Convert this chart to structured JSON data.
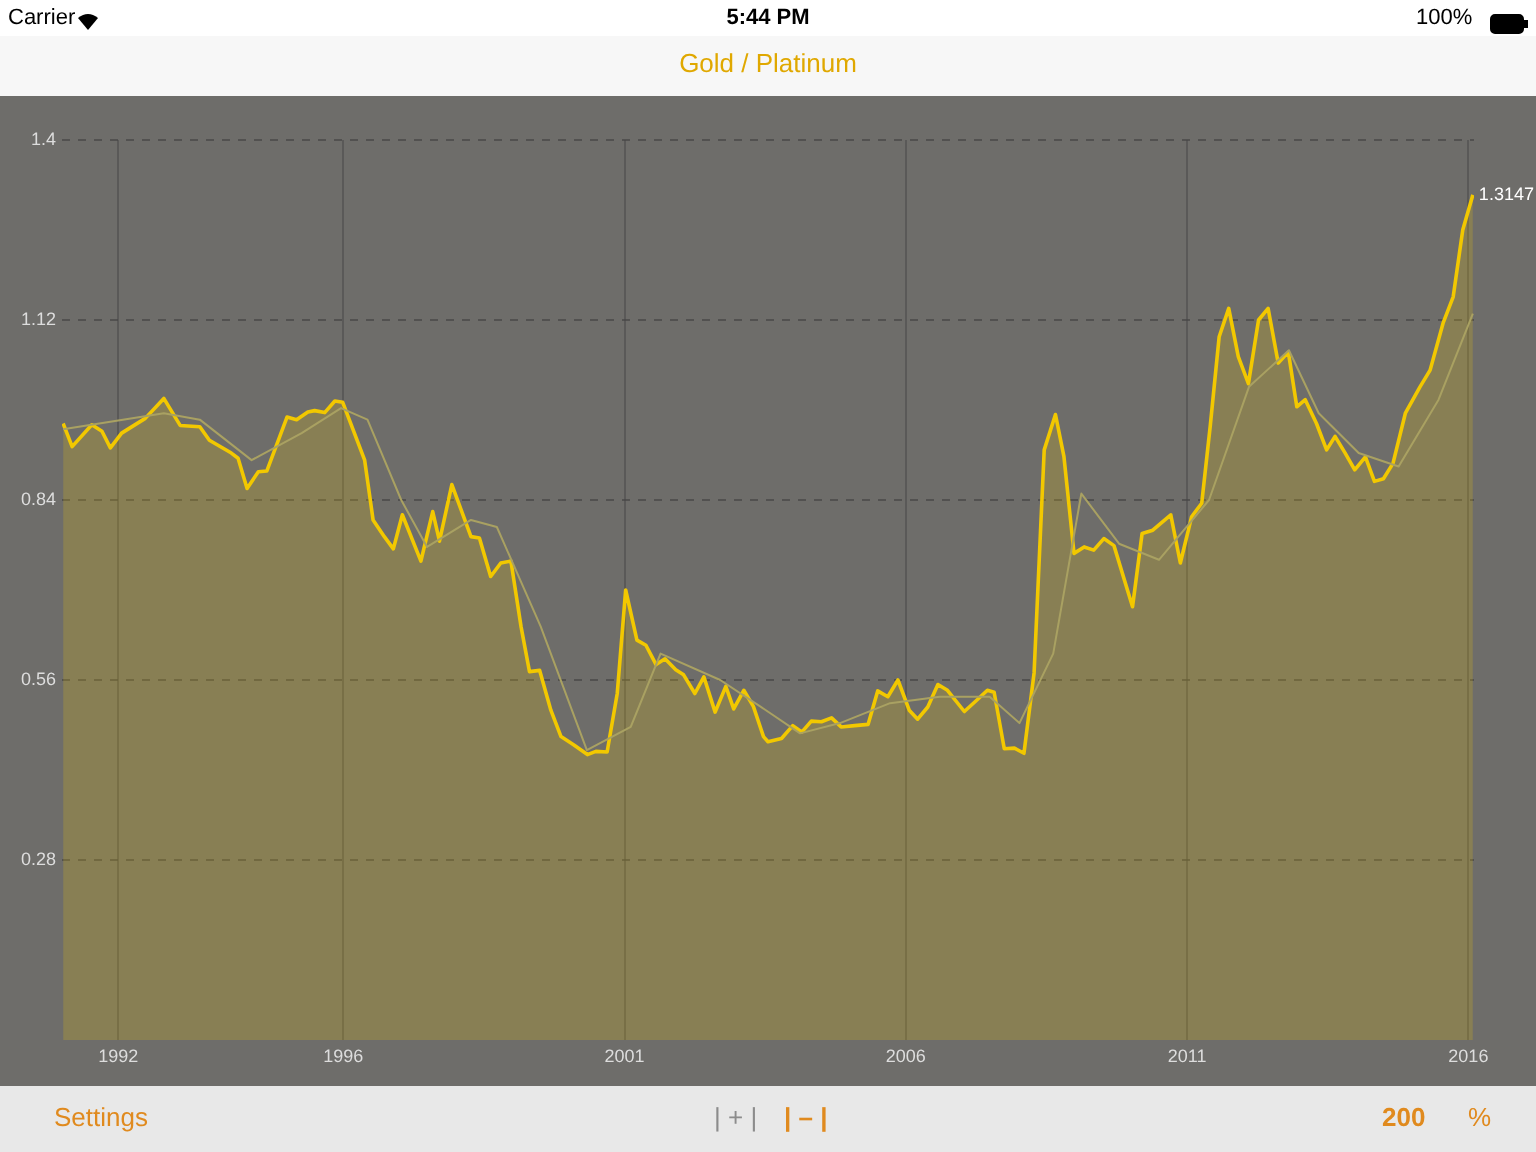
{
  "chart_data": {
    "type": "area",
    "title": "Gold / Platinum",
    "x": [
      1991.02,
      1991.18,
      1991.53,
      1991.71,
      1991.86,
      1992.06,
      1992.48,
      1992.81,
      1993.1,
      1993.45,
      1993.62,
      1994.01,
      1994.13,
      1994.29,
      1994.49,
      1994.64,
      1995.0,
      1995.17,
      1995.37,
      1995.49,
      1995.67,
      1995.85,
      1995.99,
      1996.38,
      1996.53,
      1996.73,
      1996.89,
      1997.05,
      1997.38,
      1997.59,
      1997.71,
      1997.93,
      1998.27,
      1998.42,
      1998.62,
      1998.8,
      1998.98,
      1999.16,
      1999.31,
      1999.49,
      1999.69,
      1999.87,
      2000.1,
      2000.34,
      2000.49,
      2000.69,
      2000.87,
      2001.02,
      2001.22,
      2001.38,
      2001.56,
      2001.72,
      2001.91,
      2002.05,
      2002.25,
      2002.41,
      2002.61,
      2002.8,
      2002.94,
      2003.12,
      2003.29,
      2003.47,
      2003.55,
      2003.79,
      2003.99,
      2004.15,
      2004.32,
      2004.5,
      2004.68,
      2004.85,
      2005.09,
      2005.33,
      2005.5,
      2005.68,
      2005.86,
      2006.06,
      2006.21,
      2006.39,
      2006.57,
      2006.74,
      2007.04,
      2007.24,
      2007.45,
      2007.57,
      2007.75,
      2007.93,
      2008.1,
      2008.28,
      2008.46,
      2008.66,
      2008.81,
      2008.99,
      2009.17,
      2009.34,
      2009.52,
      2009.7,
      2010.03,
      2010.2,
      2010.39,
      2010.71,
      2010.88,
      2011.08,
      2011.26,
      2011.41,
      2011.57,
      2011.74,
      2011.91,
      2012.09,
      2012.27,
      2012.44,
      2012.62,
      2012.8,
      2012.95,
      2013.1,
      2013.3,
      2013.48,
      2013.63,
      2013.81,
      2013.98,
      2014.17,
      2014.33,
      2014.49,
      2014.66,
      2014.88,
      2015.14,
      2015.32,
      2015.55,
      2015.73,
      2015.9,
      2016.08
    ],
    "series": [
      {
        "color": "#f2c800",
        "values": [
          0.959,
          0.923,
          0.957,
          0.947,
          0.921,
          0.944,
          0.967,
          0.998,
          0.956,
          0.954,
          0.933,
          0.913,
          0.905,
          0.858,
          0.884,
          0.885,
          0.969,
          0.965,
          0.977,
          0.979,
          0.976,
          0.994,
          0.992,
          0.902,
          0.809,
          0.783,
          0.764,
          0.817,
          0.745,
          0.822,
          0.776,
          0.864,
          0.783,
          0.781,
          0.721,
          0.742,
          0.745,
          0.643,
          0.573,
          0.575,
          0.513,
          0.472,
          0.459,
          0.444,
          0.449,
          0.448,
          0.539,
          0.7,
          0.622,
          0.614,
          0.584,
          0.593,
          0.576,
          0.568,
          0.539,
          0.565,
          0.51,
          0.55,
          0.515,
          0.544,
          0.519,
          0.472,
          0.464,
          0.469,
          0.489,
          0.479,
          0.496,
          0.495,
          0.501,
          0.487,
          0.489,
          0.491,
          0.543,
          0.534,
          0.56,
          0.513,
          0.499,
          0.518,
          0.553,
          0.544,
          0.511,
          0.527,
          0.544,
          0.541,
          0.453,
          0.454,
          0.446,
          0.571,
          0.918,
          0.973,
          0.908,
          0.757,
          0.767,
          0.762,
          0.78,
          0.769,
          0.674,
          0.788,
          0.793,
          0.817,
          0.742,
          0.814,
          0.835,
          0.954,
          1.094,
          1.138,
          1.063,
          1.021,
          1.12,
          1.138,
          1.053,
          1.07,
          0.985,
          0.996,
          0.959,
          0.918,
          0.939,
          0.913,
          0.887,
          0.907,
          0.869,
          0.873,
          0.897,
          0.975,
          1.016,
          1.042,
          1.115,
          1.156,
          1.26,
          1.3147
        ]
      },
      {
        "type": "line",
        "color": "#a9a162",
        "x": [
          1991.02,
          1992.81,
          1993.45,
          1994.37,
          1995.26,
          1995.96,
          1996.43,
          1997.03,
          1997.49,
          1998.27,
          1998.73,
          1999.51,
          2000.33,
          2001.11,
          2001.64,
          2002.7,
          2003.41,
          2004.12,
          2004.83,
          2005.72,
          2006.6,
          2007.49,
          2008.02,
          2008.62,
          2009.12,
          2009.79,
          2010.5,
          2011.39,
          2012.1,
          2012.81,
          2013.34,
          2014.05,
          2014.76,
          2015.47,
          2016.08
        ],
        "values": [
          0.95,
          0.975,
          0.965,
          0.902,
          0.944,
          0.983,
          0.965,
          0.84,
          0.767,
          0.809,
          0.798,
          0.643,
          0.451,
          0.487,
          0.601,
          0.56,
          0.519,
          0.477,
          0.493,
          0.524,
          0.534,
          0.534,
          0.493,
          0.601,
          0.85,
          0.772,
          0.747,
          0.84,
          1.016,
          1.073,
          0.975,
          0.913,
          0.892,
          0.996,
          1.13
        ]
      }
    ],
    "xlim": [
      1991,
      2016.1
    ],
    "xticks": [
      1992,
      1996,
      2001,
      2006,
      2011,
      2016
    ],
    "ylim": [
      0,
      1.4
    ],
    "yticks": [
      0.28,
      0.56,
      0.84,
      1.12,
      1.4
    ],
    "grid": true,
    "legend": false,
    "marker": "none",
    "annotations": [
      {
        "text": "1.3147",
        "x": 2016.08,
        "y": 1.3147
      },
      "Carrier",
      "5:44 PM",
      "100%",
      "Settings",
      "| + |",
      "| – |",
      "200",
      "%"
    ]
  }
}
